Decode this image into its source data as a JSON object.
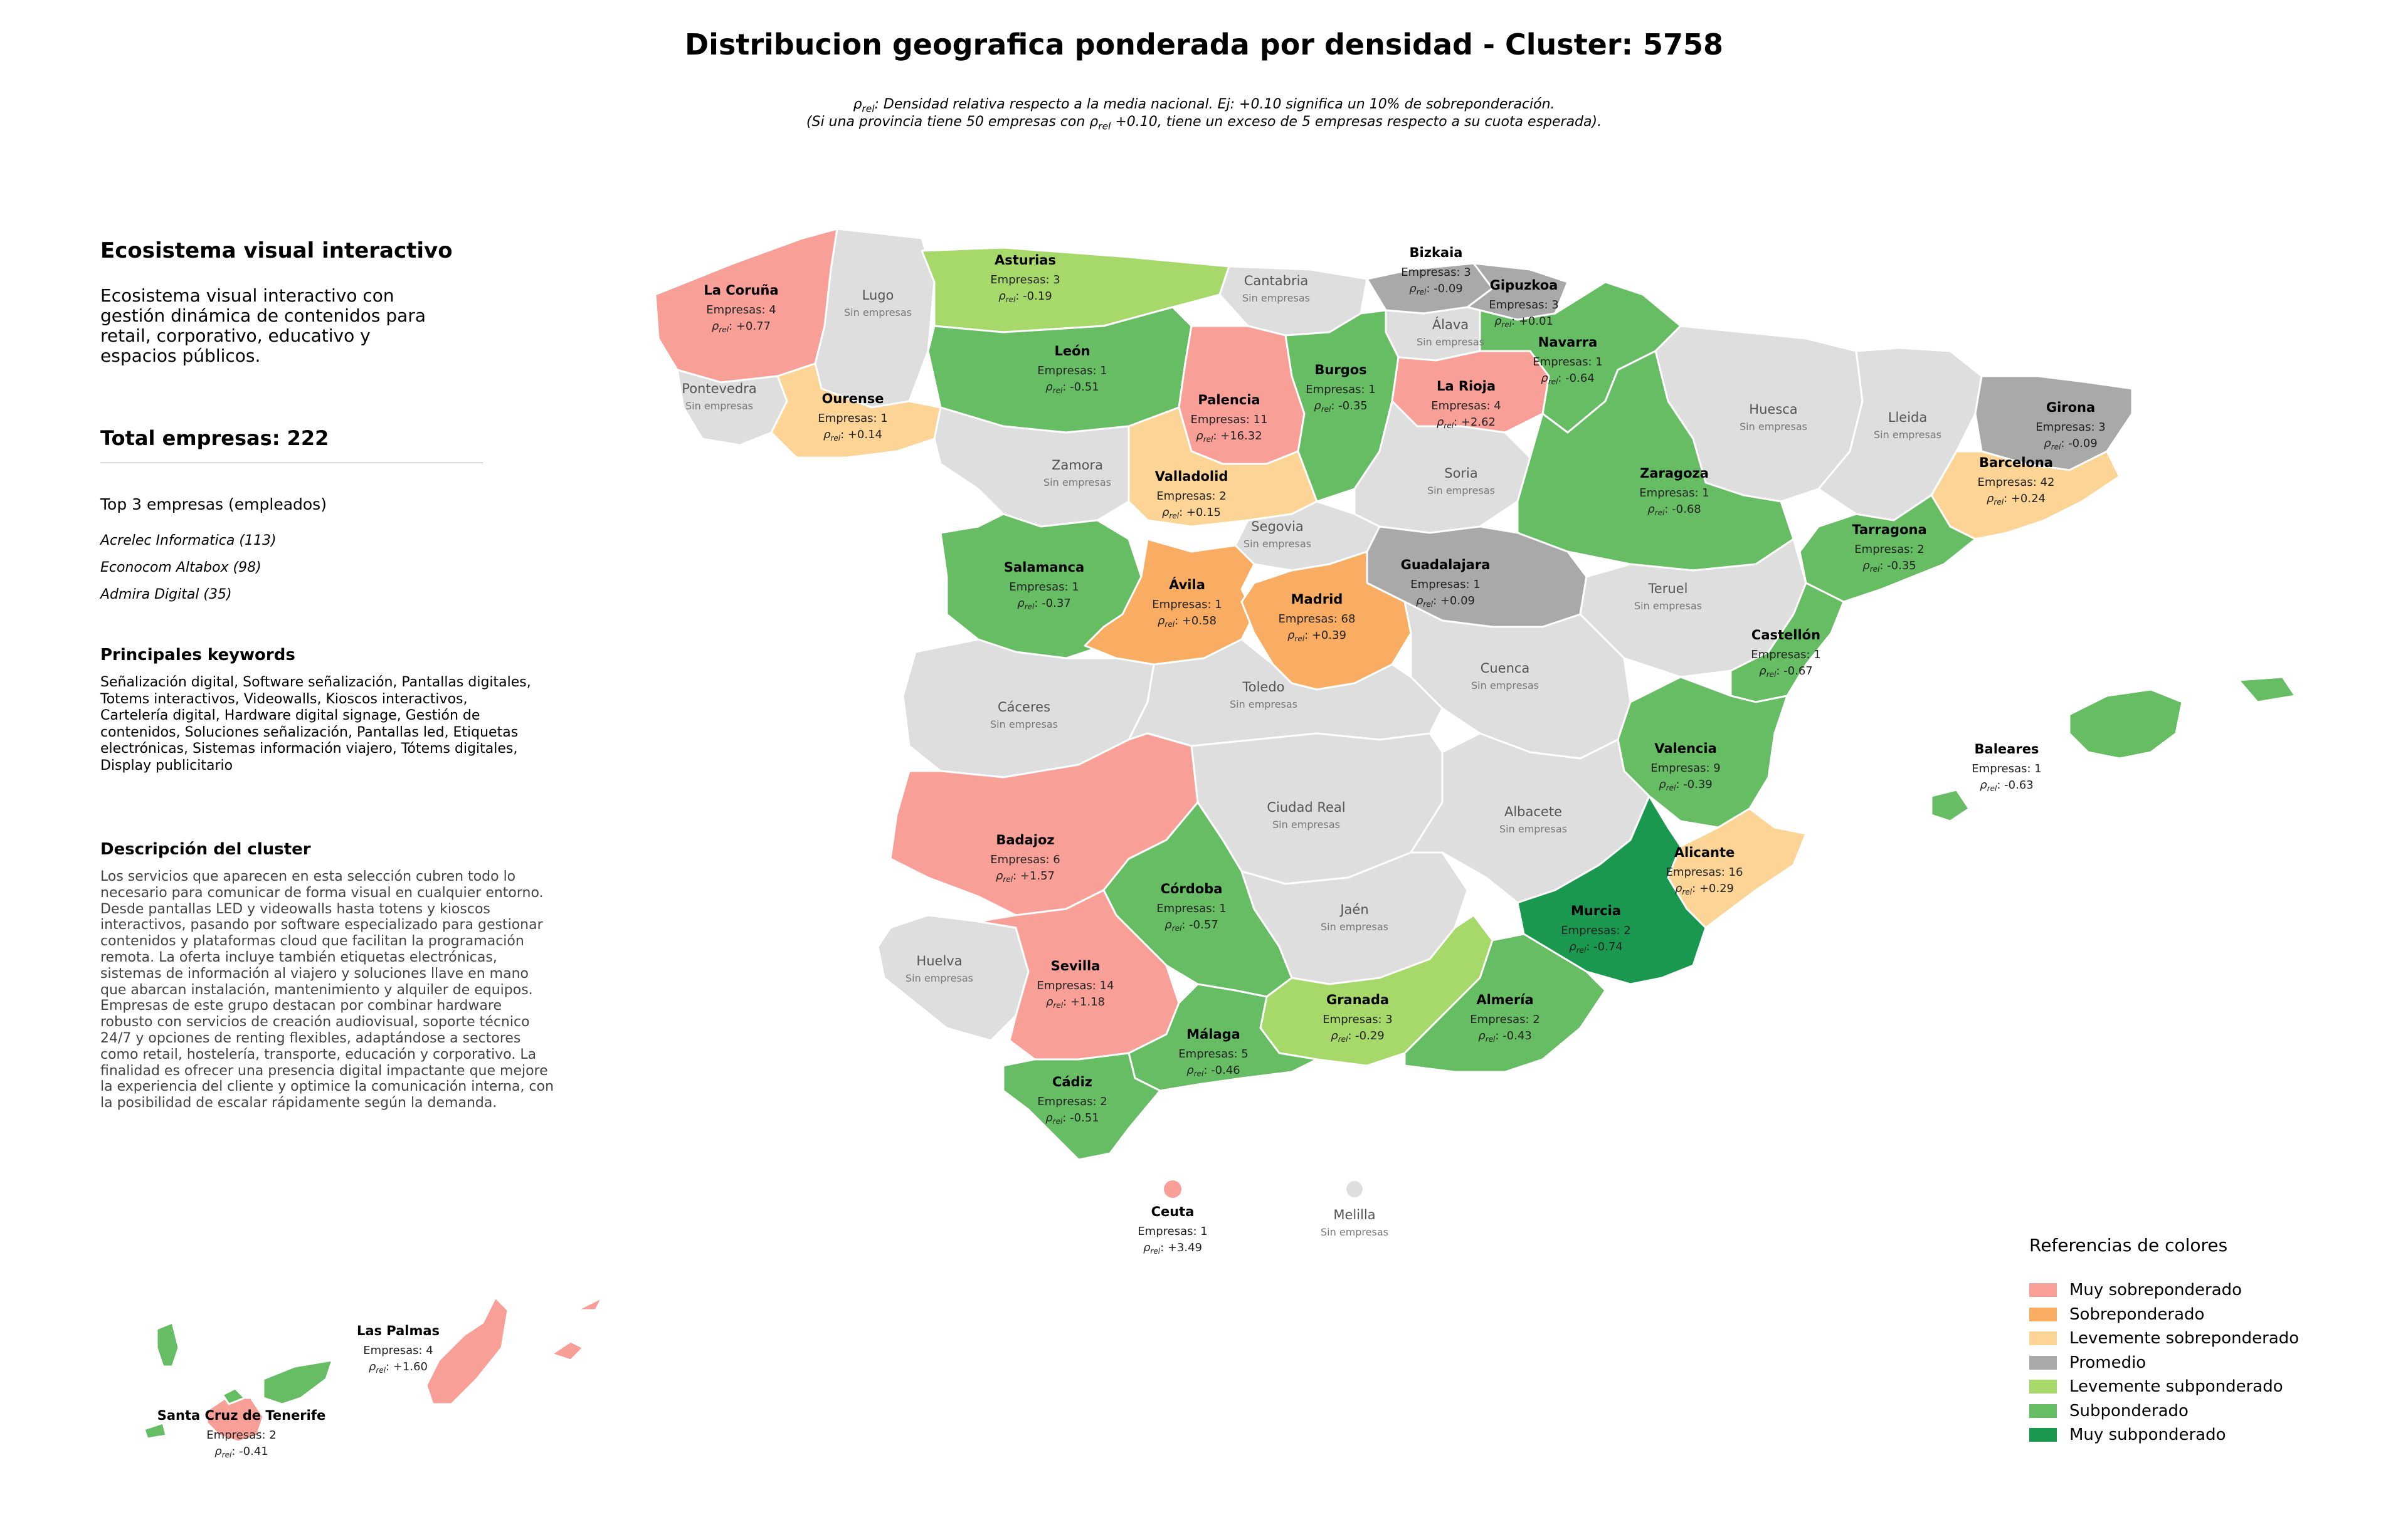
{
  "title": "Distribucion geografica ponderada por densidad - Cluster: 5758",
  "subtitle_line1": "Densidad relativa respecto a la media nacional. Ej: +0.10 significa un 10% de sobreponderación.",
  "subtitle_line2_a": "(Si una provincia tiene 50 empresas con ",
  "subtitle_line2_b": " +0.10, tiene un exceso de 5 empresas respecto a su cuota esperada).",
  "rho_symbol": "ρ",
  "rho_sub": "rel",
  "sidebar": {
    "heading": "Ecosistema visual interactivo",
    "description": "Ecosistema visual interactivo con gestión dinámica de contenidos para retail, corporativo, educativo y espacios públicos.",
    "total": "Total empresas: 222",
    "top3_title": "Top 3 empresas (empleados)",
    "top3": [
      "Acrelec Informatica (113)",
      "Econocom Altabox (98)",
      "Admira Digital (35)"
    ],
    "keywords_title": "Principales keywords",
    "keywords": "Señalización digital, Software señalización, Pantallas digitales, Totems interactivos, Videowalls, Kioscos interactivos, Cartelería digital, Hardware digital signage, Gestión de contenidos, Soluciones señalización, Pantallas led, Etiquetas electrónicas, Sistemas información viajero, Tótems digitales, Display publicitario",
    "cluster_title": "Descripción del cluster",
    "cluster_desc": "Los servicios que aparecen en esta selección cubren todo lo necesario para comunicar de forma visual en cualquier entorno. Desde pantallas LED y videowalls hasta totens y kioscos interactivos, pasando por software especializado para gestionar contenidos y plataformas cloud que facilitan la programación remota. La oferta incluye también etiquetas electrónicas, sistemas de información al viajero y soluciones llave en mano que abarcan instalación, mantenimiento y alquiler de equipos. Empresas de este grupo destacan por combinar hardware robusto con servicios de creación audiovisual, soporte técnico 24/7 y opciones de renting flexibles, adaptándose a sectores como retail, hostelería, transporte, educación y corporativo. La finalidad es ofrecer una presencia digital impactante que mejore la experiencia del cliente y optimice la comunicación interna, con la posibilidad de escalar rápidamente según la demanda."
  },
  "empresas_prefix": "Empresas: ",
  "sin_empresas": "Sin empresas",
  "legend": {
    "title": "Referencias de colores",
    "items": [
      {
        "key": "muy_sobre",
        "label": "Muy sobreponderado",
        "color": "#f8a098"
      },
      {
        "key": "sobre",
        "label": "Sobreponderado",
        "color": "#f9ad62"
      },
      {
        "key": "lev_sobre",
        "label": "Levemente sobreponderado",
        "color": "#fcd596"
      },
      {
        "key": "promedio",
        "label": "Promedio",
        "color": "#a9a9a9"
      },
      {
        "key": "lev_sub",
        "label": "Levemente subponderado",
        "color": "#a6d96a"
      },
      {
        "key": "sub",
        "label": "Subponderado",
        "color": "#66bd63"
      },
      {
        "key": "muy_sub",
        "label": "Muy subponderado",
        "color": "#1a9850"
      }
    ],
    "no_data_color": "#dedede"
  },
  "provinces": [
    {
      "name": "La Coruña",
      "empresas": 4,
      "rho": "+0.77",
      "cat": "muy_sobre"
    },
    {
      "name": "Lugo",
      "empresas": null,
      "rho": null,
      "cat": null
    },
    {
      "name": "Asturias",
      "empresas": 3,
      "rho": "-0.19",
      "cat": "lev_sub"
    },
    {
      "name": "Cantabria",
      "empresas": null,
      "rho": null,
      "cat": null
    },
    {
      "name": "Bizkaia",
      "empresas": 3,
      "rho": "-0.09",
      "cat": "promedio"
    },
    {
      "name": "Gipuzkoa",
      "empresas": 3,
      "rho": "+0.01",
      "cat": "promedio"
    },
    {
      "name": "Álava",
      "empresas": null,
      "rho": null,
      "cat": null
    },
    {
      "name": "Navarra",
      "empresas": 1,
      "rho": "-0.64",
      "cat": "sub"
    },
    {
      "name": "Pontevedra",
      "empresas": null,
      "rho": null,
      "cat": null
    },
    {
      "name": "Ourense",
      "empresas": 1,
      "rho": "+0.14",
      "cat": "lev_sobre"
    },
    {
      "name": "León",
      "empresas": 1,
      "rho": "-0.51",
      "cat": "sub"
    },
    {
      "name": "Palencia",
      "empresas": 11,
      "rho": "+16.32",
      "cat": "muy_sobre"
    },
    {
      "name": "Burgos",
      "empresas": 1,
      "rho": "-0.35",
      "cat": "sub"
    },
    {
      "name": "La Rioja",
      "empresas": 4,
      "rho": "+2.62",
      "cat": "muy_sobre"
    },
    {
      "name": "Huesca",
      "empresas": null,
      "rho": null,
      "cat": null
    },
    {
      "name": "Lleida",
      "empresas": null,
      "rho": null,
      "cat": null
    },
    {
      "name": "Girona",
      "empresas": 3,
      "rho": "-0.09",
      "cat": "promedio"
    },
    {
      "name": "Zamora",
      "empresas": null,
      "rho": null,
      "cat": null
    },
    {
      "name": "Valladolid",
      "empresas": 2,
      "rho": "+0.15",
      "cat": "lev_sobre"
    },
    {
      "name": "Soria",
      "empresas": null,
      "rho": null,
      "cat": null
    },
    {
      "name": "Zaragoza",
      "empresas": 1,
      "rho": "-0.68",
      "cat": "sub"
    },
    {
      "name": "Barcelona",
      "empresas": 42,
      "rho": "+0.24",
      "cat": "lev_sobre"
    },
    {
      "name": "Segovia",
      "empresas": null,
      "rho": null,
      "cat": null
    },
    {
      "name": "Salamanca",
      "empresas": 1,
      "rho": "-0.37",
      "cat": "sub"
    },
    {
      "name": "Tarragona",
      "empresas": 2,
      "rho": "-0.35",
      "cat": "sub"
    },
    {
      "name": "Guadalajara",
      "empresas": 1,
      "rho": "+0.09",
      "cat": "promedio"
    },
    {
      "name": "Ávila",
      "empresas": 1,
      "rho": "+0.58",
      "cat": "sobre"
    },
    {
      "name": "Madrid",
      "empresas": 68,
      "rho": "+0.39",
      "cat": "sobre"
    },
    {
      "name": "Teruel",
      "empresas": null,
      "rho": null,
      "cat": null
    },
    {
      "name": "Castellón",
      "empresas": 1,
      "rho": "-0.67",
      "cat": "sub"
    },
    {
      "name": "Cuenca",
      "empresas": null,
      "rho": null,
      "cat": null
    },
    {
      "name": "Cáceres",
      "empresas": null,
      "rho": null,
      "cat": null
    },
    {
      "name": "Toledo",
      "empresas": null,
      "rho": null,
      "cat": null
    },
    {
      "name": "Valencia",
      "empresas": 9,
      "rho": "-0.39",
      "cat": "sub"
    },
    {
      "name": "Baleares",
      "empresas": 1,
      "rho": "-0.63",
      "cat": "sub"
    },
    {
      "name": "Ciudad Real",
      "empresas": null,
      "rho": null,
      "cat": null
    },
    {
      "name": "Albacete",
      "empresas": null,
      "rho": null,
      "cat": null
    },
    {
      "name": "Badajoz",
      "empresas": 6,
      "rho": "+1.57",
      "cat": "muy_sobre"
    },
    {
      "name": "Alicante",
      "empresas": 16,
      "rho": "+0.29",
      "cat": "lev_sobre"
    },
    {
      "name": "Córdoba",
      "empresas": 1,
      "rho": "-0.57",
      "cat": "sub"
    },
    {
      "name": "Jaén",
      "empresas": null,
      "rho": null,
      "cat": null
    },
    {
      "name": "Murcia",
      "empresas": 2,
      "rho": "-0.74",
      "cat": "muy_sub"
    },
    {
      "name": "Huelva",
      "empresas": null,
      "rho": null,
      "cat": null
    },
    {
      "name": "Sevilla",
      "empresas": 14,
      "rho": "+1.18",
      "cat": "muy_sobre"
    },
    {
      "name": "Granada",
      "empresas": 3,
      "rho": "-0.29",
      "cat": "lev_sub"
    },
    {
      "name": "Almería",
      "empresas": 2,
      "rho": "-0.43",
      "cat": "sub"
    },
    {
      "name": "Málaga",
      "empresas": 5,
      "rho": "-0.46",
      "cat": "sub"
    },
    {
      "name": "Cádiz",
      "empresas": 2,
      "rho": "-0.51",
      "cat": "sub"
    },
    {
      "name": "Ceuta",
      "empresas": 1,
      "rho": "+3.49",
      "cat": "muy_sobre"
    },
    {
      "name": "Melilla",
      "empresas": null,
      "rho": null,
      "cat": null
    },
    {
      "name": "Las Palmas",
      "empresas": 4,
      "rho": "+1.60",
      "cat": "muy_sobre"
    },
    {
      "name": "Santa Cruz de Tenerife",
      "empresas": 2,
      "rho": "-0.41",
      "cat": "sub"
    }
  ]
}
